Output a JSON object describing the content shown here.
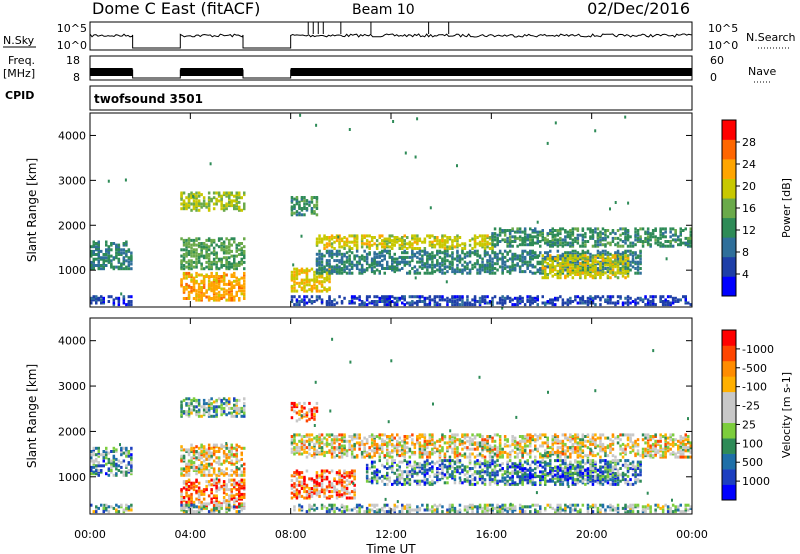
{
  "header": {
    "station": "Dome C East (fitACF)",
    "beam": "Beam 10",
    "date": "02/Dec/2016"
  },
  "summary": {
    "nsky_label": "N.Sky",
    "nsky_top": "10^5",
    "nsky_bottom": "10^0",
    "nsearch_label": "N.Search",
    "freq_label": "Freq.",
    "freq_unit": "[MHz]",
    "freq_top": "18",
    "freq_bottom": "8",
    "nave_label": "Nave",
    "nave_top": "60",
    "nave_bottom": "0",
    "cpid_label": "CPID",
    "cpid_value": "twofsound 3501"
  },
  "colors": {
    "power": [
      "#0000ff",
      "#1e3fa8",
      "#2f6f9a",
      "#2e8b57",
      "#6aaa4a",
      "#c8c800",
      "#ffa500",
      "#ff6600",
      "#ff0000"
    ],
    "velocity": [
      "#ff0000",
      "#ff4500",
      "#ff8c00",
      "#ffb000",
      "#c8c8c8",
      "#c8c8c8",
      "#7ccd3c",
      "#2e8b57",
      "#1e6fa8",
      "#1c3fc0",
      "#0000ff"
    ]
  },
  "chart_data": [
    {
      "type": "heatmap",
      "name": "power",
      "ylabel": "Slant Range [km]",
      "xlabel": "",
      "colorbar_label": "Power [dB]",
      "colorbar_ticks": [
        "4",
        "8",
        "12",
        "16",
        "20",
        "24",
        "28"
      ],
      "colorbar_range": [
        0,
        32
      ],
      "x_ticks": [
        "00:00",
        "04:00",
        "08:00",
        "12:00",
        "16:00",
        "20:00",
        "00:00"
      ],
      "x_range_hours": [
        0,
        24
      ],
      "y_ticks": [
        "1000",
        "2000",
        "3000",
        "4000"
      ],
      "y_range_km": [
        180,
        4500
      ],
      "gaps_hours": [
        [
          1.7,
          3.6
        ],
        [
          6.1,
          8.0
        ]
      ],
      "features": [
        {
          "t0": 0.0,
          "t1": 1.7,
          "r0": 1000,
          "r1": 1600,
          "level": 12
        },
        {
          "t0": 0.0,
          "t1": 1.7,
          "r0": 200,
          "r1": 400,
          "level": 6
        },
        {
          "t0": 3.6,
          "t1": 6.1,
          "r0": 300,
          "r1": 900,
          "level": 26
        },
        {
          "t0": 3.6,
          "t1": 6.1,
          "r0": 1000,
          "r1": 1700,
          "level": 16
        },
        {
          "t0": 3.6,
          "t1": 6.1,
          "r0": 2300,
          "r1": 2700,
          "level": 20
        },
        {
          "t0": 8.0,
          "t1": 9.5,
          "r0": 500,
          "r1": 1000,
          "level": 24
        },
        {
          "t0": 8.0,
          "t1": 9.0,
          "r0": 2200,
          "r1": 2600,
          "level": 14
        },
        {
          "t0": 9.0,
          "t1": 16.0,
          "r0": 1450,
          "r1": 1750,
          "level": 22
        },
        {
          "t0": 9.0,
          "t1": 22.0,
          "r0": 900,
          "r1": 1400,
          "level": 12
        },
        {
          "t0": 16.0,
          "t1": 24.0,
          "r0": 1500,
          "r1": 1900,
          "level": 14
        },
        {
          "t0": 18.0,
          "t1": 21.5,
          "r0": 800,
          "r1": 1300,
          "level": 22
        },
        {
          "t0": 8.0,
          "t1": 24.0,
          "r0": 200,
          "r1": 400,
          "level": 6
        }
      ]
    },
    {
      "type": "heatmap",
      "name": "velocity",
      "ylabel": "Slant Range [km]",
      "xlabel": "Time UT",
      "colorbar_label": "Velocity [m s-1]",
      "colorbar_ticks": [
        "-1000",
        "-500",
        "-100",
        "-25",
        "25",
        "100",
        "500",
        "1000"
      ],
      "x_ticks": [
        "00:00",
        "04:00",
        "08:00",
        "12:00",
        "16:00",
        "20:00",
        "00:00"
      ],
      "x_range_hours": [
        0,
        24
      ],
      "y_ticks": [
        "1000",
        "2000",
        "3000",
        "4000"
      ],
      "y_range_km": [
        180,
        4500
      ],
      "gaps_hours": [
        [
          1.7,
          3.6
        ],
        [
          6.1,
          8.0
        ]
      ],
      "features": [
        {
          "t0": 0.0,
          "t1": 1.7,
          "r0": 1000,
          "r1": 1600,
          "level": 7
        },
        {
          "t0": 3.6,
          "t1": 6.1,
          "r0": 300,
          "r1": 900,
          "level": 2
        },
        {
          "t0": 3.6,
          "t1": 6.1,
          "r0": 1000,
          "r1": 1700,
          "level": 4
        },
        {
          "t0": 3.6,
          "t1": 6.1,
          "r0": 2300,
          "r1": 2700,
          "level": 6
        },
        {
          "t0": 8.0,
          "t1": 10.5,
          "r0": 500,
          "r1": 1100,
          "level": 2
        },
        {
          "t0": 8.0,
          "t1": 9.0,
          "r0": 2200,
          "r1": 2600,
          "level": 2
        },
        {
          "t0": 8.0,
          "t1": 24.0,
          "r0": 1400,
          "r1": 1900,
          "level": 4
        },
        {
          "t0": 11.0,
          "t1": 22.0,
          "r0": 800,
          "r1": 1350,
          "level": 7
        },
        {
          "t0": 17.0,
          "t1": 21.0,
          "r0": 900,
          "r1": 1200,
          "level": 8
        },
        {
          "t0": 0.0,
          "t1": 24.0,
          "r0": 200,
          "r1": 350,
          "level": 6
        }
      ]
    }
  ]
}
